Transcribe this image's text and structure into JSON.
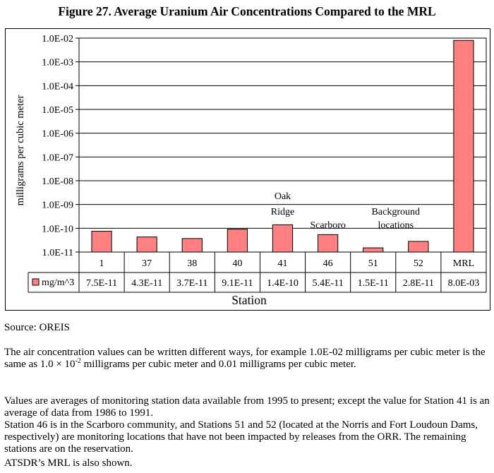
{
  "figure_title": "Figure 27. Average Uranium Air Concentrations Compared to the MRL",
  "source": "Source:  OREIS",
  "notes": {
    "line1_a": "The air concentration values can be written different ways, for example 1.0E-02 milligrams per cubic meter is the same as 1.0 × 10",
    "line1_exp": "-2",
    "line1_b": " milligrams per cubic meter and 0.01 milligrams per cubic meter.",
    "line2": "Values are averages of monitoring station data available from 1995 to present; except the value for Station 41 is an average of data from 1986 to 1991.",
    "line3": "Station 46 is in the Scarboro community, and Stations 51 and 52 (located at the Norris and Fort Loudoun Dams, respectively) are monitoring locations that have not been impacted by releases from the ORR. The remaining stations are on the reservation.",
    "line4": "ATSDR’s MRL is also shown."
  },
  "chart_data": {
    "type": "bar",
    "scale": "log",
    "title": "",
    "xlabel": "Station",
    "ylabel": "milligrams per cubic meter",
    "ylim": [
      1e-11,
      0.01
    ],
    "y_tick_labels": [
      "1.0E-02",
      "1.0E-03",
      "1.0E-04",
      "1.0E-05",
      "1.0E-06",
      "1.0E-07",
      "1.0E-08",
      "1.0E-09",
      "1.0E-10",
      "1.0E-11"
    ],
    "categories": [
      "1",
      "37",
      "38",
      "40",
      "41",
      "46",
      "51",
      "52",
      "MRL"
    ],
    "series": [
      {
        "name": "mg/m^3",
        "color": "#ff8080",
        "values": [
          7.5e-11,
          4.3e-11,
          3.7e-11,
          9.1e-11,
          1.4e-10,
          5.4e-11,
          1.5e-11,
          2.8e-11,
          0.008
        ],
        "value_labels": [
          "7.5E-11",
          "4.3E-11",
          "3.7E-11",
          "9.1E-11",
          "1.4E-10",
          "5.4E-11",
          "1.5E-11",
          "2.8E-11",
          "8.0E-03"
        ]
      }
    ],
    "annotations": [
      {
        "text": "Oak",
        "category": "41",
        "row": 0
      },
      {
        "text": "Ridge",
        "category": "41",
        "row": 1
      },
      {
        "text": "Scarboro",
        "category": "46",
        "row": 2
      },
      {
        "text": "Background",
        "category_between": [
          "51",
          "52"
        ],
        "row": 1
      },
      {
        "text": "locations",
        "category_between": [
          "51",
          "52"
        ],
        "row": 2
      }
    ],
    "grid": true,
    "legend": "data-table"
  }
}
